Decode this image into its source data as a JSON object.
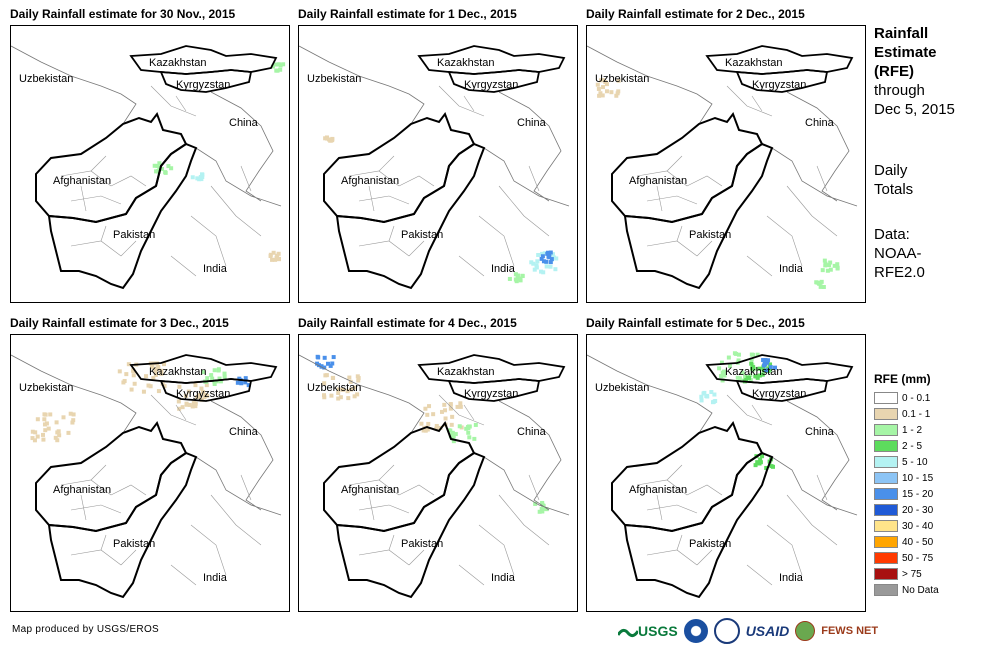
{
  "panels": [
    {
      "title": "Daily Rainfall estimate for 30 Nov., 2015"
    },
    {
      "title": "Daily Rainfall estimate for 1 Dec., 2015"
    },
    {
      "title": "Daily Rainfall estimate for 2 Dec., 2015"
    },
    {
      "title": "Daily Rainfall estimate for 3 Dec., 2015"
    },
    {
      "title": "Daily Rainfall estimate for 4 Dec., 2015"
    },
    {
      "title": "Daily Rainfall estimate for 5 Dec., 2015"
    }
  ],
  "map_labels": {
    "kazakhstan": "Kazakhstan",
    "uzbekistan": "Uzbekistan",
    "kyrgyzstan": "Kyrgyzstan",
    "china": "China",
    "afghanistan": "Afghanistan",
    "pakistan": "Pakistan",
    "india": "India"
  },
  "sidebar": {
    "title_lines": [
      "Rainfall",
      "Estimate",
      "(RFE)"
    ],
    "through_lines": [
      "through",
      "Dec 5, 2015"
    ],
    "daily_lines": [
      "Daily",
      "Totals"
    ],
    "data_lines": [
      "Data:",
      "NOAA-",
      "RFE2.0"
    ]
  },
  "legend": {
    "title": "RFE (mm)",
    "items": [
      {
        "label": "0 - 0.1",
        "color": "#ffffff"
      },
      {
        "label": "0.1 - 1",
        "color": "#e8d5b0"
      },
      {
        "label": "1 - 2",
        "color": "#a6f5a6"
      },
      {
        "label": "2 - 5",
        "color": "#5ddc5d"
      },
      {
        "label": "5 - 10",
        "color": "#b4f2f2"
      },
      {
        "label": "10 - 15",
        "color": "#8cc4f5"
      },
      {
        "label": "15 - 20",
        "color": "#4a90ea"
      },
      {
        "label": "20 - 30",
        "color": "#1f5ad6"
      },
      {
        "label": "30 - 40",
        "color": "#ffe48a"
      },
      {
        "label": "40 - 50",
        "color": "#ffa500"
      },
      {
        "label": "50 - 75",
        "color": "#ff3a00"
      },
      {
        "label": "> 75",
        "color": "#a81010"
      },
      {
        "label": "No Data",
        "color": "#999999"
      }
    ]
  },
  "footer": "Map produced by USGS/EROS",
  "logos": {
    "usgs": "USGS",
    "usaid": "USAID",
    "fewsnet": "FEWS NET"
  }
}
